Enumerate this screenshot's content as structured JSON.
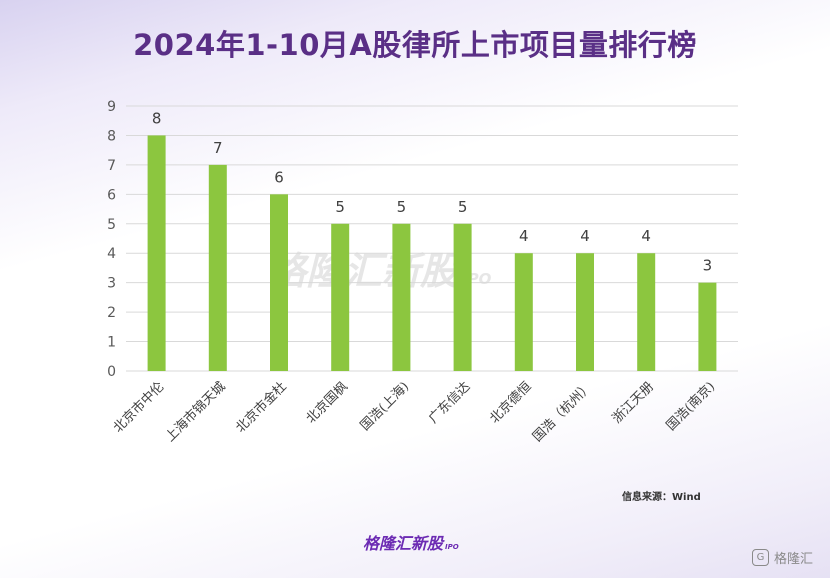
{
  "header": {
    "title": "2024年1-10月A股律所上市项目量排行榜"
  },
  "footer": {
    "source": "信息来源：Wind",
    "logo_text": "格隆汇新股",
    "logo_sub": "IPO",
    "corner_text": "格隆汇",
    "corner_icon": "G"
  },
  "watermark": {
    "text": "格隆汇新股",
    "sub": "IPO"
  },
  "colors": {
    "bar": "#8cc63f",
    "title": "#5a2f86",
    "grid": "#d9d9d9"
  },
  "chart_data": {
    "type": "bar",
    "title": "2024年1-10月A股律所上市项目量排行榜",
    "xlabel": "",
    "ylabel": "",
    "ylim": [
      0,
      9
    ],
    "yticks": [
      0,
      1,
      2,
      3,
      4,
      5,
      6,
      7,
      8,
      9
    ],
    "grid": true,
    "categories": [
      "北京市中伦",
      "上海市锦天城",
      "北京市金杜",
      "北京国枫",
      "国浩(上海)",
      "广东信达",
      "北京德恒",
      "国浩（杭州）",
      "浙江天册",
      "国浩(南京)"
    ],
    "values": [
      8,
      7,
      6,
      5,
      5,
      5,
      4,
      4,
      4,
      3
    ],
    "data_labels": true
  }
}
